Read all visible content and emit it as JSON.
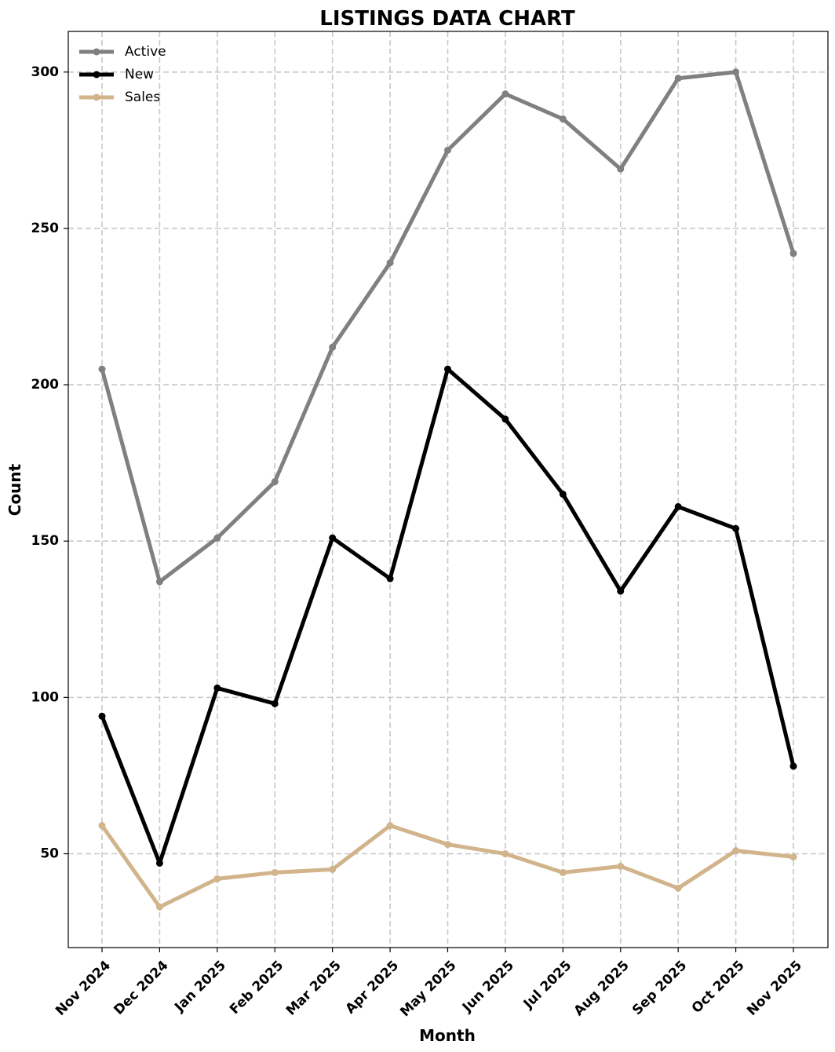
{
  "chart_data": {
    "type": "line",
    "title": "LISTINGS DATA CHART",
    "xlabel": "Month",
    "ylabel": "Count",
    "categories": [
      "Nov 2024",
      "Dec 2024",
      "Jan 2025",
      "Feb 2025",
      "Mar 2025",
      "Apr 2025",
      "May 2025",
      "Jun 2025",
      "Jul 2025",
      "Aug 2025",
      "Sep 2025",
      "Oct 2025",
      "Nov 2025"
    ],
    "ylim": [
      20,
      313
    ],
    "yticks": [
      50,
      100,
      150,
      200,
      250,
      300
    ],
    "grid": true,
    "legend_position": "top-left",
    "series": [
      {
        "name": "Active",
        "color": "#808080",
        "values": [
          205,
          137,
          151,
          169,
          212,
          239,
          275,
          293,
          285,
          269,
          298,
          300,
          242
        ]
      },
      {
        "name": "New",
        "color": "#000000",
        "values": [
          94,
          47,
          103,
          98,
          151,
          138,
          205,
          189,
          165,
          134,
          161,
          154,
          78
        ]
      },
      {
        "name": "Sales",
        "color": "#d2b48c",
        "values": [
          59,
          33,
          42,
          44,
          45,
          59,
          53,
          50,
          44,
          46,
          39,
          51,
          49
        ]
      }
    ]
  }
}
